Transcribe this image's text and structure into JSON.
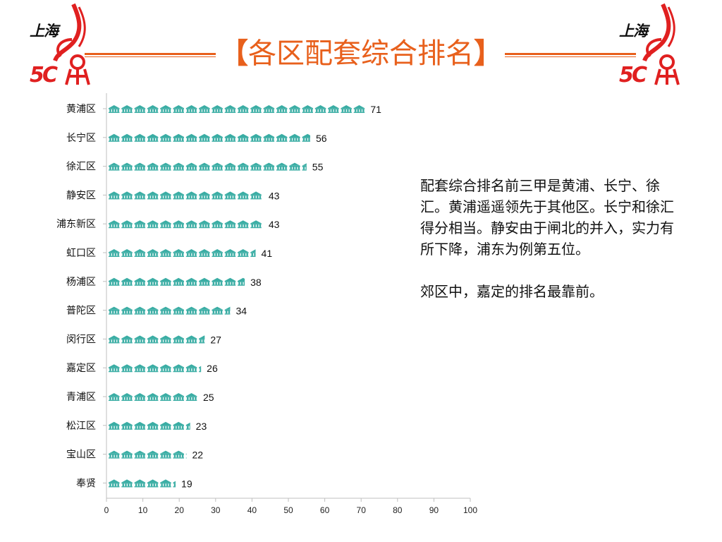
{
  "logo": {
    "text": "上海"
  },
  "title": "各区配套综合排名",
  "title_brackets": {
    "open": "【",
    "close": "】"
  },
  "description": {
    "paragraph1": "配套综合排名前三甲是黄浦、长宁、徐汇。黄浦遥遥领先于其他区。长宁和徐汇得分相当。静安由于闸北的并入，实力有所下降，浦东为例第五位。",
    "paragraph2": "郊区中，嘉定的排名最靠前。"
  },
  "colors": {
    "accent": "#e8601c",
    "icon": "#3aada4",
    "logo_red": "#e02020"
  },
  "chart_data": {
    "type": "bar",
    "orientation": "horizontal",
    "mark": "building-icon-pictograph",
    "categories": [
      "黄浦区",
      "长宁区",
      "徐汇区",
      "静安区",
      "浦东新区",
      "虹口区",
      "杨浦区",
      "普陀区",
      "闵行区",
      "嘉定区",
      "青浦区",
      "松江区",
      "宝山区",
      "奉贤"
    ],
    "values": [
      71,
      56,
      55,
      43,
      43,
      41,
      38,
      34,
      27,
      26,
      25,
      23,
      22,
      19
    ],
    "xlim": [
      0,
      100
    ],
    "xticks": [
      0,
      10,
      20,
      30,
      40,
      50,
      60,
      70,
      80,
      90,
      100
    ],
    "grid": false,
    "legend": "none"
  }
}
